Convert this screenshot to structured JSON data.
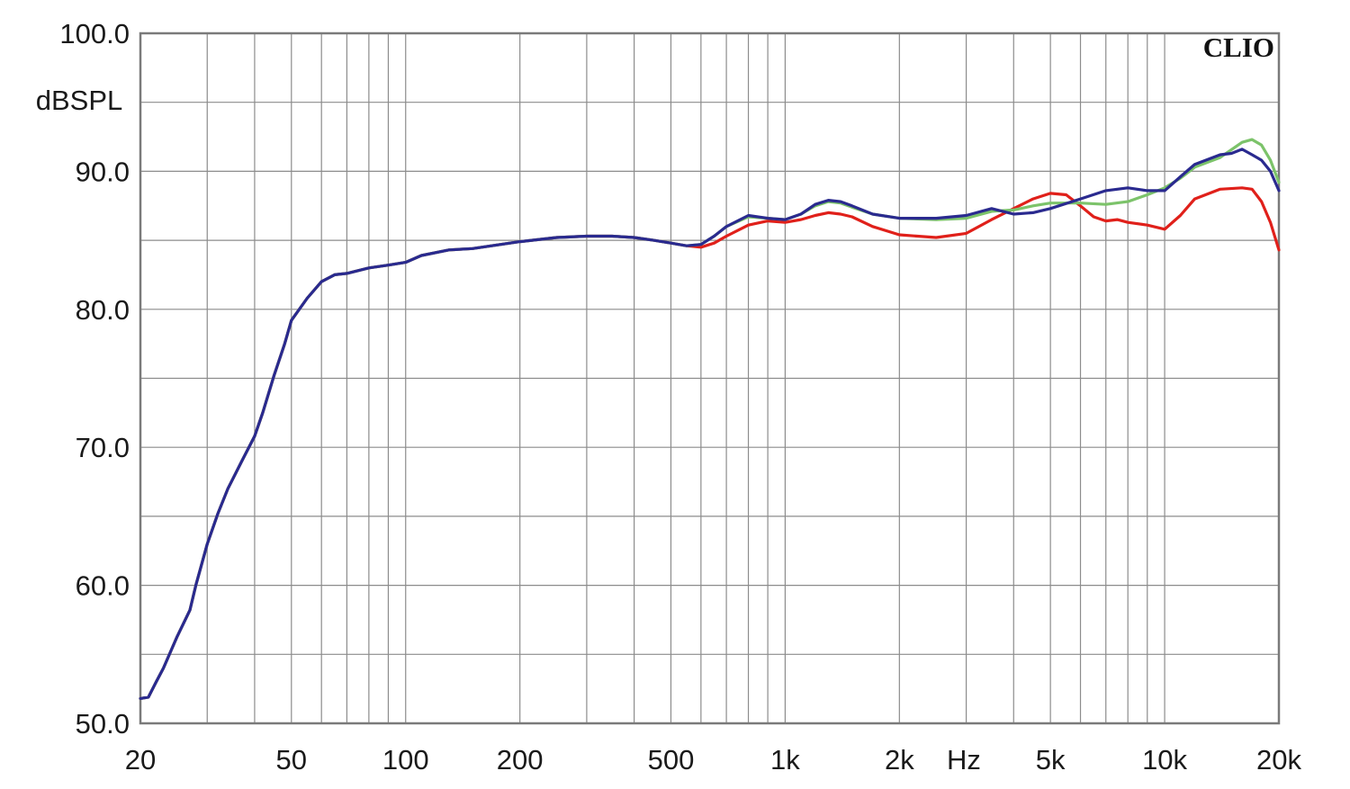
{
  "chart_data": {
    "type": "line",
    "brand": "CLIO",
    "ylabel": "dBSPL",
    "xlabel": "Hz",
    "x_scale": "log",
    "xlim": [
      20,
      20000
    ],
    "ylim": [
      50,
      100
    ],
    "grid": true,
    "y_ticks": [
      {
        "value": 100,
        "label": "100.0"
      },
      {
        "value": 90,
        "label": "90.0"
      },
      {
        "value": 80,
        "label": "80.0"
      },
      {
        "value": 70,
        "label": "70.0"
      },
      {
        "value": 60,
        "label": "60.0"
      },
      {
        "value": 50,
        "label": "50.0"
      }
    ],
    "y_minor": [
      95,
      85,
      75,
      65,
      55
    ],
    "x_ticks": [
      {
        "value": 20,
        "label": "20"
      },
      {
        "value": 50,
        "label": "50"
      },
      {
        "value": 100,
        "label": "100"
      },
      {
        "value": 200,
        "label": "200"
      },
      {
        "value": 500,
        "label": "500"
      },
      {
        "value": 1000,
        "label": "1k"
      },
      {
        "value": 2000,
        "label": "2k"
      },
      {
        "value": 5000,
        "label": "5k"
      },
      {
        "value": 10000,
        "label": "10k"
      },
      {
        "value": 20000,
        "label": "20k"
      }
    ],
    "x_grid": [
      20,
      30,
      40,
      50,
      60,
      70,
      80,
      90,
      100,
      200,
      300,
      400,
      500,
      600,
      700,
      800,
      900,
      1000,
      2000,
      3000,
      4000,
      5000,
      6000,
      7000,
      8000,
      9000,
      10000,
      20000
    ],
    "series": [
      {
        "color": "#e0201a",
        "points": [
          [
            20,
            51.8
          ],
          [
            21,
            51.9
          ],
          [
            22,
            53
          ],
          [
            23,
            54
          ],
          [
            25,
            56.3
          ],
          [
            27,
            58.2
          ],
          [
            28,
            60
          ],
          [
            30,
            63
          ],
          [
            32,
            65.2
          ],
          [
            34,
            67
          ],
          [
            37,
            69
          ],
          [
            40,
            70.8
          ],
          [
            42,
            72.5
          ],
          [
            45,
            75.2
          ],
          [
            48,
            77.5
          ],
          [
            50,
            79.2
          ],
          [
            55,
            80.8
          ],
          [
            60,
            82
          ],
          [
            65,
            82.5
          ],
          [
            70,
            82.6
          ],
          [
            80,
            83
          ],
          [
            90,
            83.2
          ],
          [
            100,
            83.4
          ],
          [
            110,
            83.9
          ],
          [
            130,
            84.3
          ],
          [
            150,
            84.4
          ],
          [
            200,
            84.9
          ],
          [
            250,
            85.2
          ],
          [
            300,
            85.3
          ],
          [
            350,
            85.3
          ],
          [
            400,
            85.2
          ],
          [
            450,
            85
          ],
          [
            500,
            84.8
          ],
          [
            550,
            84.6
          ],
          [
            600,
            84.5
          ],
          [
            650,
            84.8
          ],
          [
            700,
            85.3
          ],
          [
            800,
            86.1
          ],
          [
            900,
            86.4
          ],
          [
            1000,
            86.3
          ],
          [
            1100,
            86.5
          ],
          [
            1200,
            86.8
          ],
          [
            1300,
            87
          ],
          [
            1400,
            86.9
          ],
          [
            1500,
            86.7
          ],
          [
            1700,
            86
          ],
          [
            2000,
            85.4
          ],
          [
            2500,
            85.2
          ],
          [
            3000,
            85.5
          ],
          [
            3500,
            86.5
          ],
          [
            4000,
            87.3
          ],
          [
            4500,
            88
          ],
          [
            5000,
            88.4
          ],
          [
            5500,
            88.3
          ],
          [
            6000,
            87.5
          ],
          [
            6500,
            86.7
          ],
          [
            7000,
            86.4
          ],
          [
            7500,
            86.5
          ],
          [
            8000,
            86.3
          ],
          [
            9000,
            86.1
          ],
          [
            10000,
            85.8
          ],
          [
            11000,
            86.8
          ],
          [
            12000,
            88
          ],
          [
            14000,
            88.7
          ],
          [
            16000,
            88.8
          ],
          [
            17000,
            88.7
          ],
          [
            18000,
            87.8
          ],
          [
            19000,
            86.3
          ],
          [
            20000,
            84.3
          ]
        ]
      },
      {
        "color": "#7cc36a",
        "points": [
          [
            20,
            51.8
          ],
          [
            21,
            51.9
          ],
          [
            22,
            53
          ],
          [
            23,
            54
          ],
          [
            25,
            56.3
          ],
          [
            27,
            58.2
          ],
          [
            28,
            60
          ],
          [
            30,
            63
          ],
          [
            32,
            65.2
          ],
          [
            34,
            67
          ],
          [
            37,
            69
          ],
          [
            40,
            70.8
          ],
          [
            42,
            72.5
          ],
          [
            45,
            75.2
          ],
          [
            48,
            77.5
          ],
          [
            50,
            79.2
          ],
          [
            55,
            80.8
          ],
          [
            60,
            82
          ],
          [
            65,
            82.5
          ],
          [
            70,
            82.6
          ],
          [
            80,
            83
          ],
          [
            90,
            83.2
          ],
          [
            100,
            83.4
          ],
          [
            110,
            83.9
          ],
          [
            130,
            84.3
          ],
          [
            150,
            84.4
          ],
          [
            200,
            84.9
          ],
          [
            250,
            85.2
          ],
          [
            300,
            85.3
          ],
          [
            350,
            85.3
          ],
          [
            400,
            85.2
          ],
          [
            450,
            85
          ],
          [
            500,
            84.8
          ],
          [
            550,
            84.6
          ],
          [
            600,
            84.7
          ],
          [
            650,
            85.3
          ],
          [
            700,
            86
          ],
          [
            800,
            86.7
          ],
          [
            900,
            86.6
          ],
          [
            1000,
            86.5
          ],
          [
            1100,
            86.9
          ],
          [
            1200,
            87.5
          ],
          [
            1300,
            87.8
          ],
          [
            1400,
            87.7
          ],
          [
            1500,
            87.4
          ],
          [
            1700,
            86.9
          ],
          [
            2000,
            86.6
          ],
          [
            2500,
            86.5
          ],
          [
            3000,
            86.6
          ],
          [
            3500,
            87.1
          ],
          [
            4000,
            87.2
          ],
          [
            4500,
            87.5
          ],
          [
            5000,
            87.7
          ],
          [
            6000,
            87.7
          ],
          [
            7000,
            87.6
          ],
          [
            8000,
            87.8
          ],
          [
            9000,
            88.3
          ],
          [
            10000,
            88.8
          ],
          [
            11000,
            89.5
          ],
          [
            12000,
            90.3
          ],
          [
            14000,
            91
          ],
          [
            16000,
            92.1
          ],
          [
            17000,
            92.3
          ],
          [
            18000,
            91.9
          ],
          [
            19000,
            90.8
          ],
          [
            20000,
            89.2
          ]
        ]
      },
      {
        "color": "#2a2a8f",
        "points": [
          [
            20,
            51.8
          ],
          [
            21,
            51.9
          ],
          [
            22,
            53
          ],
          [
            23,
            54
          ],
          [
            25,
            56.3
          ],
          [
            27,
            58.2
          ],
          [
            28,
            60
          ],
          [
            30,
            63
          ],
          [
            32,
            65.2
          ],
          [
            34,
            67
          ],
          [
            37,
            69
          ],
          [
            40,
            70.8
          ],
          [
            42,
            72.5
          ],
          [
            45,
            75.2
          ],
          [
            48,
            77.5
          ],
          [
            50,
            79.2
          ],
          [
            55,
            80.8
          ],
          [
            60,
            82
          ],
          [
            65,
            82.5
          ],
          [
            70,
            82.6
          ],
          [
            80,
            83
          ],
          [
            90,
            83.2
          ],
          [
            100,
            83.4
          ],
          [
            110,
            83.9
          ],
          [
            130,
            84.3
          ],
          [
            150,
            84.4
          ],
          [
            200,
            84.9
          ],
          [
            250,
            85.2
          ],
          [
            300,
            85.3
          ],
          [
            350,
            85.3
          ],
          [
            400,
            85.2
          ],
          [
            450,
            85
          ],
          [
            500,
            84.8
          ],
          [
            550,
            84.6
          ],
          [
            600,
            84.7
          ],
          [
            650,
            85.3
          ],
          [
            700,
            86
          ],
          [
            800,
            86.8
          ],
          [
            900,
            86.6
          ],
          [
            1000,
            86.5
          ],
          [
            1100,
            86.9
          ],
          [
            1200,
            87.6
          ],
          [
            1300,
            87.9
          ],
          [
            1400,
            87.8
          ],
          [
            1500,
            87.5
          ],
          [
            1700,
            86.9
          ],
          [
            2000,
            86.6
          ],
          [
            2500,
            86.6
          ],
          [
            3000,
            86.8
          ],
          [
            3500,
            87.3
          ],
          [
            4000,
            86.9
          ],
          [
            4500,
            87
          ],
          [
            5000,
            87.3
          ],
          [
            6000,
            88
          ],
          [
            7000,
            88.6
          ],
          [
            8000,
            88.8
          ],
          [
            9000,
            88.6
          ],
          [
            10000,
            88.6
          ],
          [
            11000,
            89.6
          ],
          [
            12000,
            90.5
          ],
          [
            14000,
            91.2
          ],
          [
            15000,
            91.3
          ],
          [
            16000,
            91.6
          ],
          [
            17000,
            91.2
          ],
          [
            18000,
            90.8
          ],
          [
            19000,
            90
          ],
          [
            20000,
            88.6
          ]
        ]
      }
    ]
  }
}
